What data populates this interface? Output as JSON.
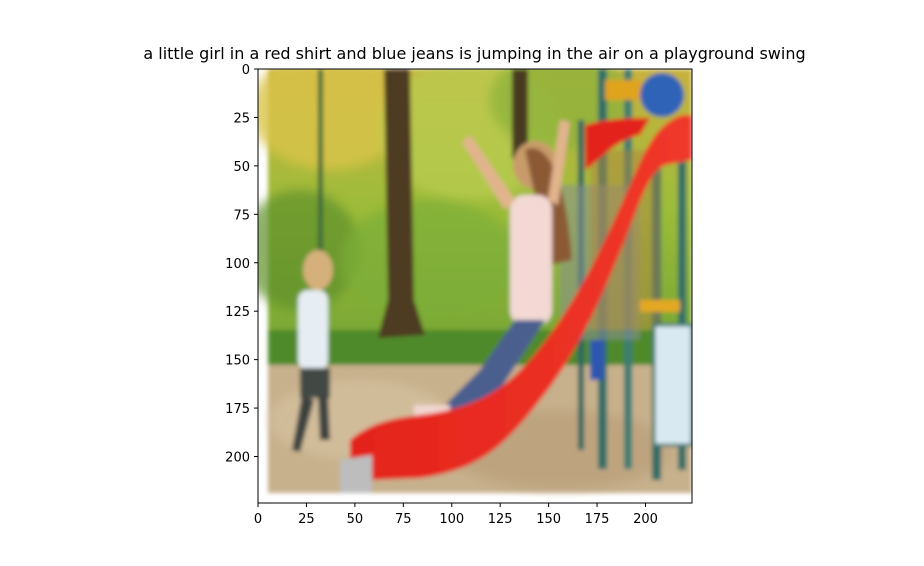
{
  "chart_data": {
    "type": "image",
    "title": "a little girl in a red shirt and blue jeans is jumping in the air on a playground swing",
    "xlabel": "",
    "ylabel": "",
    "xlim": [
      0,
      224
    ],
    "ylim": [
      224,
      0
    ],
    "x_ticks": [
      0,
      25,
      50,
      75,
      100,
      125,
      150,
      175,
      200
    ],
    "y_ticks": [
      0,
      25,
      50,
      75,
      100,
      125,
      150,
      175,
      200
    ],
    "grid": false,
    "legend": "none"
  }
}
